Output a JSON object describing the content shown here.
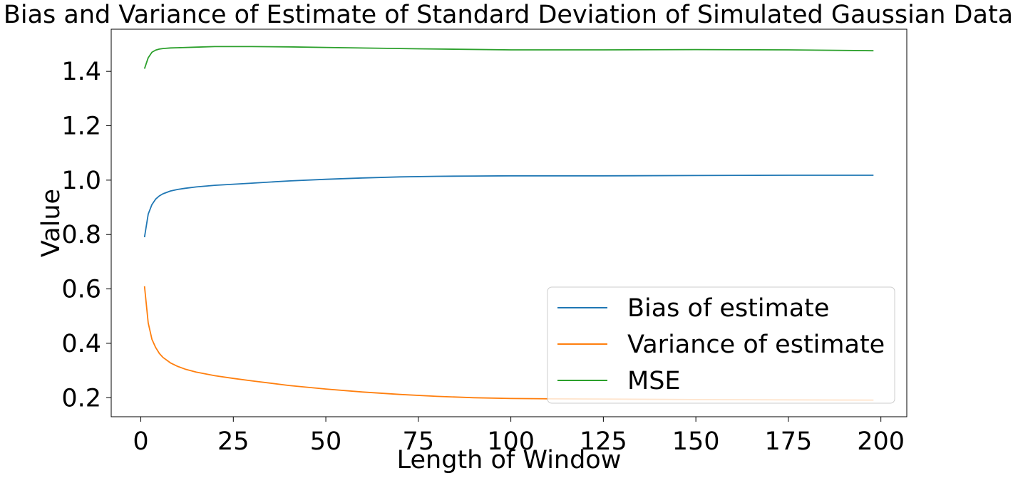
{
  "chart_data": {
    "type": "line",
    "title": "Bias and Variance of Estimate of Standard Deviation of Simulated Gaussian Data",
    "xlabel": "Length of Window",
    "ylabel": "Value",
    "xlim": [
      -8,
      207
    ],
    "ylim": [
      0.13,
      1.555
    ],
    "xticks": [
      0,
      25,
      50,
      75,
      100,
      125,
      150,
      175,
      200
    ],
    "xtick_labels": [
      "0",
      "25",
      "50",
      "75",
      "100",
      "125",
      "150",
      "175",
      "200"
    ],
    "yticks": [
      0.2,
      0.4,
      0.6,
      0.8,
      1.0,
      1.2,
      1.4
    ],
    "ytick_labels": [
      "0.2",
      "0.4",
      "0.6",
      "0.8",
      "1.0",
      "1.2",
      "1.4"
    ],
    "grid": false,
    "legend_position": "lower-right",
    "series": [
      {
        "name": "Bias of estimate",
        "color": "#1f77b4",
        "x": [
          1,
          2,
          3,
          4,
          5,
          6,
          8,
          10,
          12,
          15,
          20,
          25,
          30,
          40,
          50,
          60,
          70,
          80,
          90,
          100,
          125,
          150,
          175,
          198
        ],
        "y": [
          0.79,
          0.875,
          0.91,
          0.93,
          0.942,
          0.95,
          0.96,
          0.966,
          0.97,
          0.975,
          0.981,
          0.985,
          0.989,
          0.997,
          1.003,
          1.008,
          1.012,
          1.014,
          1.015,
          1.016,
          1.016,
          1.017,
          1.018,
          1.018
        ]
      },
      {
        "name": "Variance of estimate",
        "color": "#ff7f0e",
        "x": [
          1,
          2,
          3,
          4,
          5,
          6,
          8,
          10,
          12,
          15,
          20,
          25,
          30,
          40,
          50,
          60,
          70,
          80,
          90,
          100,
          110,
          125,
          150,
          175,
          198
        ],
        "y": [
          0.61,
          0.475,
          0.415,
          0.385,
          0.363,
          0.348,
          0.328,
          0.315,
          0.305,
          0.294,
          0.281,
          0.271,
          0.262,
          0.245,
          0.232,
          0.221,
          0.212,
          0.205,
          0.2,
          0.197,
          0.196,
          0.195,
          0.193,
          0.192,
          0.191
        ]
      },
      {
        "name": "MSE",
        "color": "#2ca02c",
        "x": [
          1,
          2,
          3,
          4,
          5,
          6,
          8,
          10,
          15,
          20,
          30,
          40,
          50,
          75,
          100,
          125,
          150,
          175,
          198
        ],
        "y": [
          1.41,
          1.45,
          1.47,
          1.478,
          1.482,
          1.484,
          1.486,
          1.487,
          1.489,
          1.491,
          1.491,
          1.49,
          1.488,
          1.483,
          1.479,
          1.479,
          1.48,
          1.479,
          1.476
        ]
      }
    ]
  }
}
